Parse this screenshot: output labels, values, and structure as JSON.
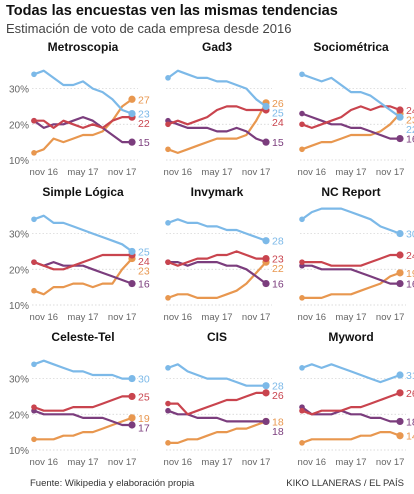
{
  "title": "Todas las encuestas ven las mismas tendencias",
  "subtitle": "Estimación de voto de cada empresa desde 2016",
  "source": "Fuente: Wikipedia y elaboración propia",
  "credit": "KIKO LLANERAS / EL PAÍS",
  "colors": {
    "blue": "#7cb9e8",
    "red": "#c9444e",
    "orange": "#e8974f",
    "purple": "#7b3d7d"
  },
  "chart_data": [
    {
      "type": "line",
      "title": "Metroscopia",
      "x_tick_labels": [
        "nov 16",
        "may 17",
        "nov 17"
      ],
      "y_tick_labels": [
        "10%",
        "20%",
        "30%"
      ],
      "ylim": [
        10,
        38
      ],
      "series": [
        {
          "color_key": "blue",
          "end_label": "23",
          "values": [
            34,
            35,
            33,
            31,
            31,
            32,
            30,
            29,
            27,
            24,
            23
          ]
        },
        {
          "color_key": "red",
          "end_label": "22",
          "values": [
            21,
            21,
            19,
            21,
            20,
            19,
            20,
            19,
            21,
            22,
            22
          ]
        },
        {
          "color_key": "orange",
          "end_label": "27",
          "values": [
            12,
            13,
            16,
            15,
            16,
            17,
            17,
            18,
            21,
            25,
            27
          ]
        },
        {
          "color_key": "purple",
          "end_label": "15",
          "values": [
            21,
            19,
            20,
            20,
            21,
            22,
            21,
            19,
            17,
            15,
            15
          ]
        }
      ]
    },
    {
      "type": "line",
      "title": "Gad3",
      "x_tick_labels": [
        "nov 16",
        "may 17",
        "nov 17"
      ],
      "y_tick_labels": [],
      "ylim": [
        10,
        38
      ],
      "series": [
        {
          "color_key": "blue",
          "end_label": "25",
          "values": [
            33,
            35,
            34,
            33,
            33,
            32,
            32,
            31,
            30,
            27,
            25
          ]
        },
        {
          "color_key": "red",
          "end_label": "24",
          "values": [
            20,
            21,
            20,
            21,
            22,
            24,
            25,
            25,
            24,
            24,
            24
          ]
        },
        {
          "color_key": "orange",
          "end_label": "26",
          "values": [
            13,
            12,
            13,
            14,
            15,
            16,
            16,
            16,
            17,
            21,
            26
          ]
        },
        {
          "color_key": "purple",
          "end_label": "15",
          "values": [
            21,
            20,
            19,
            19,
            19,
            18,
            18,
            19,
            18,
            16,
            15
          ]
        }
      ]
    },
    {
      "type": "line",
      "title": "Sociométrica",
      "x_tick_labels": [
        "nov 16",
        "may 17",
        "nov 17"
      ],
      "y_tick_labels": [],
      "ylim": [
        10,
        38
      ],
      "series": [
        {
          "color_key": "blue",
          "end_label": "22",
          "values": [
            34,
            33,
            32,
            33,
            31,
            29,
            29,
            28,
            26,
            24,
            22
          ]
        },
        {
          "color_key": "red",
          "end_label": "24",
          "values": [
            20,
            19,
            20,
            21,
            22,
            24,
            25,
            24,
            25,
            25,
            24
          ]
        },
        {
          "color_key": "orange",
          "end_label": "23",
          "values": [
            13,
            14,
            15,
            15,
            16,
            17,
            17,
            17,
            18,
            20,
            23
          ]
        },
        {
          "color_key": "purple",
          "end_label": "16",
          "values": [
            23,
            22,
            21,
            20,
            20,
            19,
            19,
            18,
            17,
            16,
            16
          ]
        }
      ]
    },
    {
      "type": "line",
      "title": "Simple Lógica",
      "x_tick_labels": [
        "nov 16",
        "may 17",
        "nov 17"
      ],
      "y_tick_labels": [
        "10%",
        "20%",
        "30%"
      ],
      "ylim": [
        10,
        38
      ],
      "series": [
        {
          "color_key": "blue",
          "end_label": "25",
          "values": [
            34,
            35,
            33,
            33,
            32,
            31,
            30,
            29,
            28,
            27,
            25
          ]
        },
        {
          "color_key": "red",
          "end_label": "24",
          "values": [
            22,
            21,
            20,
            20,
            21,
            22,
            23,
            24,
            24,
            24,
            24
          ]
        },
        {
          "color_key": "orange",
          "end_label": "23",
          "values": [
            14,
            13,
            15,
            15,
            16,
            16,
            15,
            16,
            16,
            20,
            23
          ]
        },
        {
          "color_key": "purple",
          "end_label": "16",
          "values": [
            22,
            21,
            22,
            21,
            21,
            21,
            20,
            19,
            18,
            17,
            16
          ]
        }
      ]
    },
    {
      "type": "line",
      "title": "Invymark",
      "x_tick_labels": [
        "nov 16",
        "may 17",
        "nov 17"
      ],
      "y_tick_labels": [],
      "ylim": [
        10,
        38
      ],
      "series": [
        {
          "color_key": "blue",
          "end_label": "28",
          "values": [
            33,
            34,
            33,
            33,
            32,
            32,
            31,
            31,
            30,
            29,
            28
          ]
        },
        {
          "color_key": "red",
          "end_label": "23",
          "values": [
            22,
            21,
            22,
            23,
            23,
            24,
            24,
            25,
            24,
            23,
            23
          ]
        },
        {
          "color_key": "orange",
          "end_label": "22",
          "values": [
            12,
            13,
            13,
            12,
            12,
            12,
            13,
            14,
            16,
            19,
            22
          ]
        },
        {
          "color_key": "purple",
          "end_label": "16",
          "values": [
            22,
            22,
            21,
            22,
            22,
            22,
            21,
            21,
            20,
            18,
            16
          ]
        }
      ]
    },
    {
      "type": "line",
      "title": "NC Report",
      "x_tick_labels": [
        "nov 16",
        "may 17",
        "nov 17"
      ],
      "y_tick_labels": [],
      "ylim": [
        10,
        38
      ],
      "series": [
        {
          "color_key": "blue",
          "end_label": "30",
          "values": [
            34,
            36,
            37,
            37,
            37,
            36,
            35,
            34,
            32,
            31,
            30
          ]
        },
        {
          "color_key": "red",
          "end_label": "24",
          "values": [
            22,
            22,
            22,
            21,
            21,
            21,
            21,
            22,
            23,
            24,
            24
          ]
        },
        {
          "color_key": "orange",
          "end_label": "19",
          "values": [
            12,
            12,
            12,
            13,
            13,
            13,
            14,
            15,
            16,
            18,
            19
          ]
        },
        {
          "color_key": "purple",
          "end_label": "16",
          "values": [
            21,
            21,
            20,
            20,
            20,
            20,
            19,
            18,
            17,
            16,
            16
          ]
        }
      ]
    },
    {
      "type": "line",
      "title": "Celeste-Tel",
      "x_tick_labels": [
        "nov 16",
        "may 17",
        "nov 17"
      ],
      "y_tick_labels": [
        "10%",
        "20%",
        "30%"
      ],
      "ylim": [
        10,
        38
      ],
      "series": [
        {
          "color_key": "blue",
          "end_label": "30",
          "values": [
            34,
            35,
            34,
            33,
            32,
            32,
            31,
            31,
            31,
            30,
            30
          ]
        },
        {
          "color_key": "red",
          "end_label": "25",
          "values": [
            22,
            21,
            21,
            21,
            22,
            22,
            22,
            23,
            24,
            25,
            25
          ]
        },
        {
          "color_key": "orange",
          "end_label": "19",
          "values": [
            13,
            13,
            13,
            14,
            14,
            15,
            15,
            16,
            17,
            18,
            19
          ]
        },
        {
          "color_key": "purple",
          "end_label": "17",
          "values": [
            21,
            20,
            20,
            20,
            20,
            19,
            19,
            19,
            18,
            17,
            17
          ]
        }
      ]
    },
    {
      "type": "line",
      "title": "CIS",
      "x_tick_labels": [
        "nov 16",
        "may 17",
        "nov 17"
      ],
      "y_tick_labels": [],
      "ylim": [
        10,
        38
      ],
      "series": [
        {
          "color_key": "blue",
          "end_label": "28",
          "values": [
            33,
            34,
            32,
            31,
            30,
            30,
            30,
            29,
            28,
            28,
            28
          ]
        },
        {
          "color_key": "red",
          "end_label": "26",
          "values": [
            23,
            23,
            20,
            21,
            22,
            23,
            24,
            24,
            25,
            26,
            26
          ]
        },
        {
          "color_key": "orange",
          "end_label": "18",
          "values": [
            12,
            12,
            13,
            13,
            14,
            15,
            15,
            16,
            16,
            17,
            18
          ]
        },
        {
          "color_key": "purple",
          "end_label": "18",
          "values": [
            21,
            20,
            20,
            19,
            19,
            19,
            18,
            18,
            18,
            18,
            18
          ]
        }
      ]
    },
    {
      "type": "line",
      "title": "Myword",
      "x_tick_labels": [
        "nov 16",
        "may 17",
        "nov 17"
      ],
      "y_tick_labels": [],
      "ylim": [
        10,
        38
      ],
      "series": [
        {
          "color_key": "blue",
          "end_label": "31",
          "values": [
            33,
            34,
            33,
            34,
            33,
            32,
            31,
            30,
            29,
            30,
            31
          ]
        },
        {
          "color_key": "red",
          "end_label": "26",
          "values": [
            21,
            20,
            21,
            21,
            21,
            22,
            22,
            23,
            24,
            25,
            26
          ]
        },
        {
          "color_key": "orange",
          "end_label": "14",
          "values": [
            12,
            13,
            13,
            13,
            13,
            13,
            14,
            14,
            15,
            15,
            14
          ]
        },
        {
          "color_key": "purple",
          "end_label": "18",
          "values": [
            22,
            20,
            20,
            20,
            21,
            20,
            20,
            19,
            19,
            18,
            18
          ]
        }
      ]
    }
  ]
}
